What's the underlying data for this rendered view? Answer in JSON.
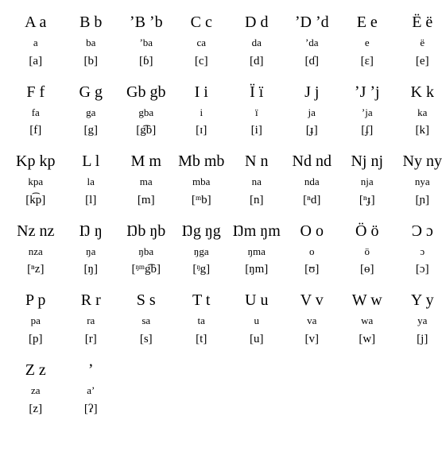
{
  "alphabet": {
    "type": "table",
    "columns_per_row": 8,
    "text_color": "#000000",
    "background_color": "#ffffff",
    "letter_fontsize_pt": 16,
    "syllable_fontsize_pt": 10,
    "ipa_fontsize_pt": 12,
    "entries": [
      {
        "letter": "A a",
        "syl": "a",
        "ipa": "[a]"
      },
      {
        "letter": "B b",
        "syl": "ba",
        "ipa": "[b]"
      },
      {
        "letter": "ʼB ʼb",
        "syl": "ʼba",
        "ipa": "[ɓ]"
      },
      {
        "letter": "C c",
        "syl": "ca",
        "ipa": "[c]"
      },
      {
        "letter": "D d",
        "syl": "da",
        "ipa": "[d]"
      },
      {
        "letter": "ʼD ʼd",
        "syl": "ʼda",
        "ipa": "[ɗ]"
      },
      {
        "letter": "E e",
        "syl": "e",
        "ipa": "[ɛ]"
      },
      {
        "letter": "Ë ë",
        "syl": "ë",
        "ipa": "[e]"
      },
      {
        "letter": "F f",
        "syl": "fa",
        "ipa": "[f]"
      },
      {
        "letter": "G g",
        "syl": "ga",
        "ipa": "[g]"
      },
      {
        "letter": "Gb gb",
        "syl": "gba",
        "ipa": "[g͡b]"
      },
      {
        "letter": "I i",
        "syl": "i",
        "ipa": "[ɪ]"
      },
      {
        "letter": "Ï ï",
        "syl": "ï",
        "ipa": "[i]"
      },
      {
        "letter": "J j",
        "syl": "ja",
        "ipa": "[ɟ]"
      },
      {
        "letter": "ʼJ ʼj",
        "syl": "ʼja",
        "ipa": "[ʄ]"
      },
      {
        "letter": "K k",
        "syl": "ka",
        "ipa": "[k]"
      },
      {
        "letter": "Kp kp",
        "syl": "kpa",
        "ipa": "[k͡p]"
      },
      {
        "letter": "L l",
        "syl": "la",
        "ipa": "[l]"
      },
      {
        "letter": "M m",
        "syl": "ma",
        "ipa": "[m]"
      },
      {
        "letter": "Mb mb",
        "syl": "mba",
        "ipa": "[ᵐb]"
      },
      {
        "letter": "N n",
        "syl": "na",
        "ipa": "[n]"
      },
      {
        "letter": "Nd nd",
        "syl": "nda",
        "ipa": "[ⁿd]"
      },
      {
        "letter": "Nj nj",
        "syl": "nja",
        "ipa": "[ⁿɟ]"
      },
      {
        "letter": "Ny ny",
        "syl": "nya",
        "ipa": "[ɲ]"
      },
      {
        "letter": "Nz nz",
        "syl": "nza",
        "ipa": "[ⁿz]"
      },
      {
        "letter": "Ŋ ŋ",
        "syl": "ŋa",
        "ipa": "[ŋ]"
      },
      {
        "letter": "Ŋb ŋb",
        "syl": "ŋba",
        "ipa": "[ᵑᵐg͡b]"
      },
      {
        "letter": "Ŋg ŋg",
        "syl": "ŋga",
        "ipa": "[ᵑg]"
      },
      {
        "letter": "Ŋm ŋm",
        "syl": "ŋma",
        "ipa": "[ŋm]"
      },
      {
        "letter": "O o",
        "syl": "o",
        "ipa": "[ʊ]"
      },
      {
        "letter": "Ö ö",
        "syl": "ö",
        "ipa": "[ɵ]"
      },
      {
        "letter": "Ɔ ɔ",
        "syl": "ɔ",
        "ipa": "[ɔ]"
      },
      {
        "letter": "P p",
        "syl": "pa",
        "ipa": "[p]"
      },
      {
        "letter": "R r",
        "syl": "ra",
        "ipa": "[r]"
      },
      {
        "letter": "S s",
        "syl": "sa",
        "ipa": "[s]"
      },
      {
        "letter": "T t",
        "syl": "ta",
        "ipa": "[t]"
      },
      {
        "letter": "U u",
        "syl": "u",
        "ipa": "[u]"
      },
      {
        "letter": "V v",
        "syl": "va",
        "ipa": "[v]"
      },
      {
        "letter": "W w",
        "syl": "wa",
        "ipa": "[w]"
      },
      {
        "letter": "Y y",
        "syl": "ya",
        "ipa": "[j]"
      },
      {
        "letter": "Z z",
        "syl": "za",
        "ipa": "[z]"
      },
      {
        "letter": "ʼ",
        "syl": "aʼ",
        "ipa": "[ʔ]"
      }
    ]
  }
}
